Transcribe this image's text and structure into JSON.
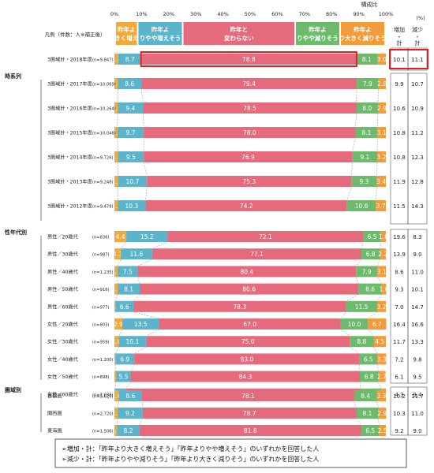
{
  "chart_data": {
    "type": "bar",
    "stacked": true,
    "orientation": "horizontal",
    "axis_title": "構成比",
    "x_ticks": [
      "0%",
      "10%",
      "20%",
      "30%",
      "40%",
      "50%",
      "60%",
      "70%",
      "80%",
      "90%",
      "100%"
    ],
    "xlim": [
      0,
      100
    ],
    "legend_caption": "凡例（件数：人※補正後）",
    "series": [
      {
        "name": "昨年より大きく増えそう",
        "color": "#f2a93b"
      },
      {
        "name": "昨年よりやや増えそう",
        "color": "#5bb3cc"
      },
      {
        "name": "昨年と変わらない",
        "color": "#e46a7c"
      },
      {
        "name": "昨年よりやや減りそう",
        "color": "#6dba6d"
      },
      {
        "name": "昨年より大きく減りそう",
        "color": "#f39a3a"
      }
    ],
    "extra_columns": {
      "unit": "(%)",
      "increase_header": "増加・計",
      "decrease_header": "減少・計"
    },
    "groups": [
      {
        "label": "",
        "rows": [
          {
            "label": "3圏域計・2018年度",
            "n": "(n=9,847)",
            "values": [
              1.4,
              8.7,
              78.8,
              8.1,
              3.0
            ],
            "inc": "10.1",
            "dec": "11.1",
            "highlight": true
          }
        ]
      },
      {
        "label": "時系列",
        "rows": [
          {
            "label": "3圏域計・2017年度",
            "n": "(n=10,069)",
            "values": [
              1.3,
              8.6,
              79.4,
              7.9,
              2.8
            ],
            "inc": "9.9",
            "dec": "10.7"
          },
          {
            "label": "3圏域計・2016年度",
            "n": "(n=10,264)",
            "values": [
              1.2,
              9.4,
              78.5,
              8.0,
              2.9
            ],
            "inc": "10.6",
            "dec": "10.9"
          },
          {
            "label": "3圏域計・2015年度",
            "n": "(n=10,048)",
            "values": [
              1.1,
              9.7,
              78.0,
              8.1,
              3.1
            ],
            "inc": "10.8",
            "dec": "11.2"
          },
          {
            "label": "3圏域計・2014年度",
            "n": "(n=9,726)",
            "values": [
              1.3,
              9.5,
              76.9,
              9.1,
              3.2
            ],
            "inc": "10.8",
            "dec": "12.3"
          },
          {
            "label": "3圏域計・2013年度",
            "n": "(n=9,248)",
            "values": [
              1.3,
              10.7,
              75.3,
              9.3,
              3.4
            ],
            "inc": "11.9",
            "dec": "12.8"
          },
          {
            "label": "3圏域計・2012年度",
            "n": "(n=9,478)",
            "values": [
              1.2,
              10.3,
              74.2,
              10.6,
              3.7
            ],
            "inc": "11.5",
            "dec": "14.3"
          }
        ]
      },
      {
        "label": "性年代別",
        "rows": [
          {
            "label": "男性／20歳代",
            "n": "(n=836)",
            "values": [
              4.4,
              15.2,
              72.1,
              6.5,
              1.8
            ],
            "inc": "19.6",
            "dec": "8.3"
          },
          {
            "label": "男性／30歳代",
            "n": "(n=987)",
            "values": [
              2.3,
              11.6,
              77.1,
              6.8,
              2.2
            ],
            "inc": "13.9",
            "dec": "9.0"
          },
          {
            "label": "男性／40歳代",
            "n": "(n=1,235)",
            "values": [
              1.1,
              7.5,
              80.4,
              7.9,
              3.1
            ],
            "inc": "8.6",
            "dec": "11.0"
          },
          {
            "label": "男性／50歳代",
            "n": "(n=916)",
            "values": [
              1.2,
              8.1,
              80.6,
              8.6,
              1.6
            ],
            "inc": "9.3",
            "dec": "10.1"
          },
          {
            "label": "男性／60歳代",
            "n": "(n=977)",
            "values": [
              0.4,
              6.6,
              78.3,
              11.5,
              3.2
            ],
            "inc": "7.0",
            "dec": "14.7"
          },
          {
            "label": "女性／20歳代",
            "n": "(n=803)",
            "values": [
              2.9,
              13.5,
              67.0,
              10.0,
              6.7
            ],
            "inc": "16.4",
            "dec": "16.6"
          },
          {
            "label": "女性／30歳代",
            "n": "(n=959)",
            "values": [
              1.6,
              10.1,
              75.0,
              8.8,
              4.5
            ],
            "inc": "11.7",
            "dec": "13.3"
          },
          {
            "label": "女性／40歳代",
            "n": "(n=1,200)",
            "values": [
              0.4,
              6.9,
              83.0,
              6.5,
              3.3
            ],
            "inc": "7.2",
            "dec": "9.8"
          },
          {
            "label": "女性／50歳代",
            "n": "(n=898)",
            "values": [
              0.6,
              5.5,
              84.3,
              6.8,
              2.7
            ],
            "inc": "6.1",
            "dec": "9.5"
          },
          {
            "label": "女性／60歳代",
            "n": "(n=1,036)",
            "values": [
              0.2,
              4.1,
              86.3,
              7.6,
              1.8
            ],
            "inc": "4.3",
            "dec": "9.4"
          }
        ]
      },
      {
        "label": "圏域別",
        "rows": [
          {
            "label": "首都圏",
            "n": "(n=5,620)",
            "values": [
              1.6,
              8.6,
              78.1,
              8.4,
              3.3
            ],
            "inc": "10.2",
            "dec": "11.7"
          },
          {
            "label": "関西圏",
            "n": "(n=2,720)",
            "values": [
              1.2,
              9.2,
              78.7,
              8.1,
              2.9
            ],
            "inc": "10.3",
            "dec": "11.0"
          },
          {
            "label": "東海圏",
            "n": "(n=1,506)",
            "values": [
              1.0,
              8.2,
              81.8,
              6.5,
              2.5
            ],
            "inc": "9.2",
            "dec": "9.0"
          }
        ]
      }
    ],
    "notes": [
      "➢増加・計：「昨年より大きく増えそう」「昨年よりやや増えそう」のいずれかを回答した人",
      "➢減少・計：「昨年よりやや減りそう」「昨年より大きく減りそう」のいずれかを回答した人"
    ]
  }
}
